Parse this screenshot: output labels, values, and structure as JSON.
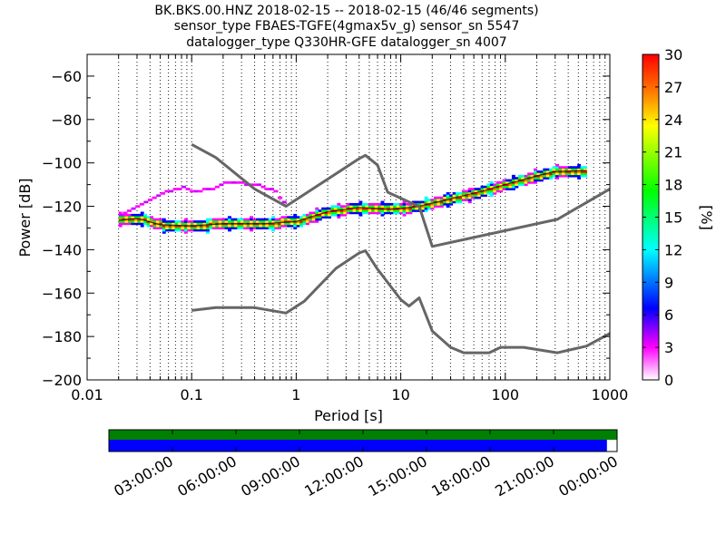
{
  "chart_data": {
    "type": "heatmap",
    "title_lines": [
      "BK.BKS.00.HNZ   2018-02-15 -- 2018-02-15  (46/46 segments)",
      "sensor_type FBAES-TGFE(4gmax5v_g) sensor_sn 5547",
      "datalogger_type Q330HR-GFE datalogger_sn 4007"
    ],
    "xlabel": "Period [s]",
    "ylabel": "Power [dB]",
    "x_scale": "log",
    "xlim": [
      0.01,
      1000
    ],
    "ylim": [
      -200,
      -50
    ],
    "x_ticks": [
      "0.01",
      "0.1",
      "1",
      "10",
      "100",
      "1000"
    ],
    "y_ticks": [
      -60,
      -80,
      -100,
      -120,
      -140,
      -160,
      -180,
      -200
    ],
    "grid": "dotted vertical lines at log minor ticks",
    "colorbar": {
      "label": "[%]",
      "min": 0,
      "max": 30,
      "ticks": [
        0,
        3,
        6,
        9,
        12,
        15,
        18,
        21,
        24,
        27,
        30
      ],
      "colormap": [
        "#ffffff",
        "#ff00ff",
        "#0000ff",
        "#00ffff",
        "#00ff00",
        "#ffff00",
        "#ff8000",
        "#ff0000"
      ]
    },
    "noise_models": [
      {
        "name": "high",
        "color": "#666666",
        "points": [
          [
            0.1,
            -91.5
          ],
          [
            0.17,
            -97.5
          ],
          [
            0.4,
            -112
          ],
          [
            0.8,
            -120
          ],
          [
            4.0,
            -98
          ],
          [
            4.6,
            -96.5
          ],
          [
            6.0,
            -101
          ],
          [
            7.5,
            -113.5
          ],
          [
            12,
            -118
          ],
          [
            15,
            -120
          ],
          [
            20,
            -138.5
          ],
          [
            315,
            -126
          ],
          [
            1000,
            -112
          ]
        ]
      },
      {
        "name": "low",
        "color": "#666666",
        "points": [
          [
            0.1,
            -168
          ],
          [
            0.17,
            -166.7
          ],
          [
            0.4,
            -166.7
          ],
          [
            0.8,
            -169.2
          ],
          [
            1.2,
            -163.7
          ],
          [
            2.4,
            -148.6
          ],
          [
            4.0,
            -141.5
          ],
          [
            4.6,
            -140.5
          ],
          [
            6.0,
            -149
          ],
          [
            10,
            -163
          ],
          [
            12,
            -166
          ],
          [
            15,
            -162.2
          ],
          [
            20,
            -177.5
          ],
          [
            30,
            -185
          ],
          [
            40,
            -187.5
          ],
          [
            70,
            -187.5
          ],
          [
            90,
            -185
          ],
          [
            150,
            -185
          ],
          [
            315,
            -187.5
          ],
          [
            600,
            -184.4
          ],
          [
            1000,
            -178.6
          ]
        ]
      }
    ],
    "psd_mode_curve": [
      [
        0.02,
        -126.5
      ],
      [
        0.03,
        -125.5
      ],
      [
        0.05,
        -128.5
      ],
      [
        0.1,
        -129
      ],
      [
        0.2,
        -128
      ],
      [
        0.5,
        -128
      ],
      [
        1.0,
        -127
      ],
      [
        2.0,
        -122.5
      ],
      [
        4.0,
        -120.5
      ],
      [
        8.0,
        -121.5
      ],
      [
        15,
        -120
      ],
      [
        30,
        -116.5
      ],
      [
        60,
        -113
      ],
      [
        100,
        -110
      ],
      [
        200,
        -106
      ],
      [
        300,
        -104
      ],
      [
        600,
        -103.5
      ]
    ],
    "secondary_band": [
      [
        0.02,
        -124
      ],
      [
        0.03,
        -120
      ],
      [
        0.05,
        -114
      ],
      [
        0.08,
        -111
      ],
      [
        0.1,
        -113
      ],
      [
        0.15,
        -112
      ],
      [
        0.2,
        -109.5
      ],
      [
        0.3,
        -109.5
      ],
      [
        0.4,
        -110
      ],
      [
        0.6,
        -113
      ],
      [
        0.8,
        -120
      ]
    ]
  },
  "timeline": {
    "tick_labels": [
      "03:00:00",
      "06:00:00",
      "09:00:00",
      "12:00:00",
      "15:00:00",
      "18:00:00",
      "21:00:00",
      "00:00:00"
    ],
    "coverage_fraction": 0.98,
    "top_bar_color": "#008000",
    "coverage_color": "#0000ff"
  }
}
